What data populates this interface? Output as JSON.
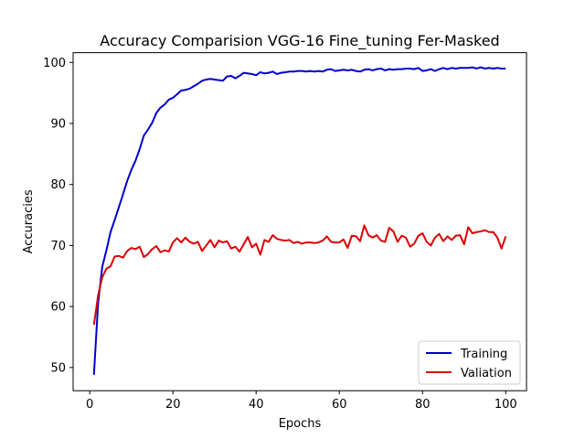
{
  "chart_data": {
    "type": "line",
    "title": "Accuracy Comparision VGG-16 Fine_tuning Fer-Masked",
    "xlabel": "Epochs",
    "ylabel": "Accuracies",
    "xlim": [
      -4,
      105
    ],
    "ylim": [
      46.2,
      101.6
    ],
    "xticks": [
      0,
      20,
      40,
      60,
      80,
      100
    ],
    "yticks": [
      50,
      60,
      70,
      80,
      90,
      100
    ],
    "grid": false,
    "legend_position": "lower right",
    "x": [
      1,
      2,
      3,
      4,
      5,
      6,
      7,
      8,
      9,
      10,
      11,
      12,
      13,
      14,
      15,
      16,
      17,
      18,
      19,
      20,
      21,
      22,
      23,
      24,
      25,
      26,
      27,
      28,
      29,
      30,
      31,
      32,
      33,
      34,
      35,
      36,
      37,
      38,
      39,
      40,
      41,
      42,
      43,
      44,
      45,
      46,
      47,
      48,
      49,
      50,
      51,
      52,
      53,
      54,
      55,
      56,
      57,
      58,
      59,
      60,
      61,
      62,
      63,
      64,
      65,
      66,
      67,
      68,
      69,
      70,
      71,
      72,
      73,
      74,
      75,
      76,
      77,
      78,
      79,
      80,
      81,
      82,
      83,
      84,
      85,
      86,
      87,
      88,
      89,
      90,
      91,
      92,
      93,
      94,
      95,
      96,
      97,
      98,
      99,
      100
    ],
    "series": [
      {
        "name": "Training",
        "color": "#0000cc",
        "values": [
          48.8,
          60.5,
          66.5,
          69.2,
          72.2,
          74.2,
          76.3,
          78.4,
          80.6,
          82.4,
          83.9,
          85.8,
          88.0,
          89.0,
          90.1,
          91.7,
          92.6,
          93.1,
          93.9,
          94.2,
          94.8,
          95.4,
          95.5,
          95.7,
          96.1,
          96.5,
          97.0,
          97.2,
          97.3,
          97.2,
          97.1,
          97.0,
          97.7,
          97.8,
          97.4,
          97.8,
          98.3,
          98.2,
          98.1,
          97.9,
          98.4,
          98.2,
          98.3,
          98.5,
          98.1,
          98.3,
          98.4,
          98.5,
          98.5,
          98.6,
          98.6,
          98.5,
          98.6,
          98.5,
          98.6,
          98.5,
          98.8,
          98.9,
          98.6,
          98.7,
          98.8,
          98.7,
          98.8,
          98.6,
          98.5,
          98.8,
          98.9,
          98.7,
          98.9,
          99.0,
          98.7,
          98.9,
          98.8,
          98.9,
          98.9,
          99.0,
          99.0,
          98.9,
          99.1,
          98.6,
          98.7,
          98.9,
          98.6,
          98.9,
          99.1,
          98.9,
          99.1,
          99.0,
          99.1,
          99.1,
          99.1,
          99.2,
          99.0,
          99.2,
          99.0,
          99.1,
          99.0,
          99.1,
          99.0,
          99.0
        ]
      },
      {
        "name": "Valiation",
        "color": "#dd0000",
        "values": [
          57.0,
          61.8,
          64.8,
          66.2,
          66.6,
          68.2,
          68.3,
          68.0,
          69.1,
          69.6,
          69.4,
          69.8,
          68.1,
          68.6,
          69.4,
          69.9,
          68.9,
          69.2,
          69.0,
          70.5,
          71.2,
          70.5,
          71.3,
          70.6,
          70.3,
          70.6,
          69.1,
          70.0,
          70.9,
          69.7,
          70.8,
          70.5,
          70.7,
          69.5,
          69.8,
          69.0,
          70.2,
          71.4,
          69.7,
          70.3,
          68.5,
          70.9,
          70.6,
          71.7,
          71.1,
          70.9,
          70.8,
          70.9,
          70.4,
          70.6,
          70.3,
          70.5,
          70.5,
          70.4,
          70.5,
          70.8,
          71.5,
          70.6,
          70.5,
          70.5,
          71.0,
          69.6,
          71.6,
          71.5,
          70.7,
          73.3,
          71.7,
          71.3,
          71.7,
          70.8,
          70.6,
          72.9,
          72.3,
          70.6,
          71.6,
          71.3,
          69.8,
          70.3,
          71.6,
          72.0,
          70.6,
          70.0,
          71.3,
          71.9,
          70.7,
          71.5,
          70.9,
          71.6,
          71.7,
          70.2,
          73.0,
          72.0,
          72.2,
          72.3,
          72.5,
          72.2,
          72.2,
          71.3,
          69.5,
          71.5
        ]
      }
    ]
  }
}
